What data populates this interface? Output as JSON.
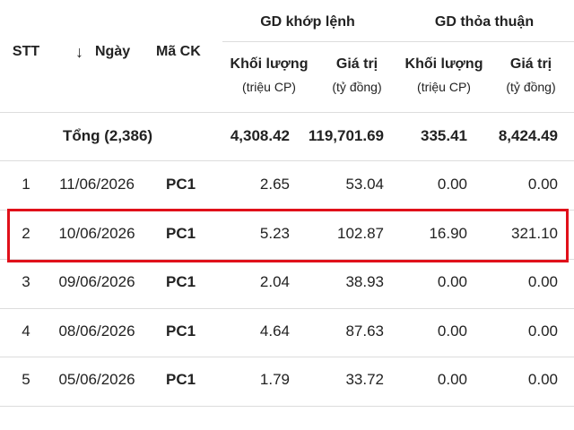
{
  "header": {
    "stt": "STT",
    "date": "Ngày",
    "code": "Mã CK",
    "groups": [
      {
        "title": "GD khớp lệnh",
        "columns": [
          {
            "label": "Khối lượng",
            "unit": "(triệu CP)"
          },
          {
            "label": "Giá trị",
            "unit": "(tỷ đồng)"
          }
        ]
      },
      {
        "title": "GD thỏa thuận",
        "columns": [
          {
            "label": "Khối lượng",
            "unit": "(triệu CP)"
          },
          {
            "label": "Giá trị",
            "unit": "(tỷ đồng)"
          }
        ]
      }
    ]
  },
  "total": {
    "label": "Tổng (2,386)",
    "values": [
      "4,308.42",
      "119,701.69",
      "335.41",
      "8,424.49"
    ]
  },
  "rows": [
    [
      "1",
      "11/06/2026",
      "PC1",
      "2.65",
      "53.04",
      "0.00",
      "0.00"
    ],
    [
      "2",
      "10/06/2026",
      "PC1",
      "5.23",
      "102.87",
      "16.90",
      "321.10"
    ],
    [
      "3",
      "09/06/2026",
      "PC1",
      "2.04",
      "38.93",
      "0.00",
      "0.00"
    ],
    [
      "4",
      "08/06/2026",
      "PC1",
      "4.64",
      "87.63",
      "0.00",
      "0.00"
    ],
    [
      "5",
      "05/06/2026",
      "PC1",
      "1.79",
      "33.72",
      "0.00",
      "0.00"
    ]
  ]
}
